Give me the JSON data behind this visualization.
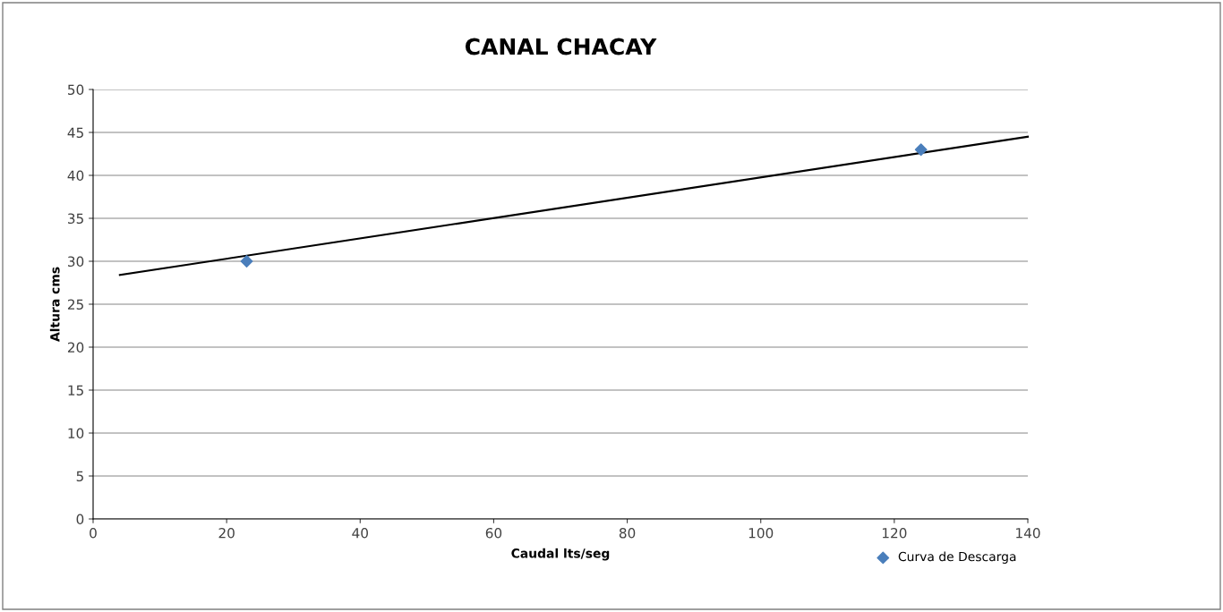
{
  "chart_data": {
    "type": "scatter",
    "title": "CANAL CHACAY",
    "xlabel": "Caudal lts/seg",
    "ylabel": "Altura cms",
    "series": [
      {
        "name": "Curva de Descarga",
        "color": "#4a7ebb",
        "marker": "diamond",
        "x": [
          23,
          124
        ],
        "values": [
          30,
          43
        ]
      },
      {
        "type": "line",
        "color": "#000000",
        "marker": "none",
        "x": [
          4,
          140
        ],
        "values": [
          28.4,
          44.5
        ]
      }
    ],
    "xlim": [
      0,
      140
    ],
    "xticks": [
      0,
      20,
      40,
      60,
      80,
      100,
      120,
      140
    ],
    "ylim": [
      0,
      50
    ],
    "yticks": [
      0,
      5,
      10,
      15,
      20,
      25,
      30,
      35,
      40,
      45,
      50
    ],
    "grid": "y",
    "legend": "bottom right"
  }
}
